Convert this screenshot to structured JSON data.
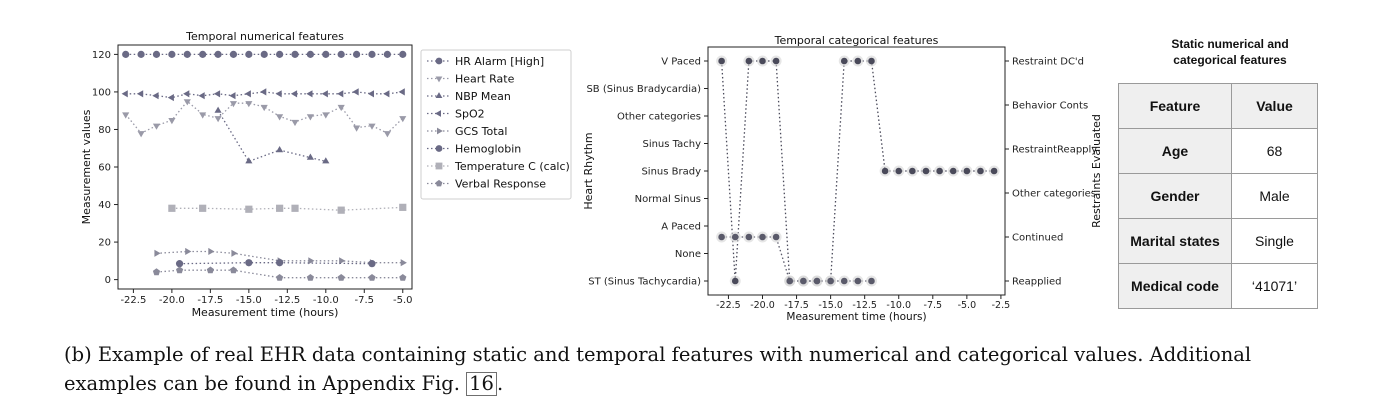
{
  "chart_data": [
    {
      "type": "line",
      "title": "Temporal numerical features",
      "xlabel": "Measurement time (hours)",
      "ylabel": "Measurement values",
      "xlim": [
        -23.5,
        -4.4
      ],
      "ylim": [
        -5,
        125
      ],
      "xticks": [
        -22.5,
        -20.0,
        -17.5,
        -15.0,
        -12.5,
        -10.0,
        -7.5,
        -5.0
      ],
      "xtick_labels": [
        "-22.5",
        "-20.0",
        "-17.5",
        "-15.0",
        "-12.5",
        "-10.0",
        "-7.5",
        "-5.0"
      ],
      "yticks": [
        0,
        20,
        40,
        60,
        80,
        100,
        120
      ],
      "ytick_labels": [
        "0",
        "20",
        "40",
        "60",
        "80",
        "100",
        "120"
      ],
      "legend_position": "outside right",
      "series": [
        {
          "name": "HR Alarm [High]",
          "marker": "circle",
          "color": "#6a6a85",
          "x": [
            -23,
            -22,
            -21,
            -20,
            -19,
            -18,
            -17,
            -16,
            -15,
            -14,
            -13,
            -12,
            -11,
            -10,
            -9,
            -8,
            -7,
            -6,
            -5
          ],
          "y": [
            120,
            120,
            120,
            120,
            120,
            120,
            120,
            120,
            120,
            120,
            120,
            120,
            120,
            120,
            120,
            120,
            120,
            120,
            120
          ]
        },
        {
          "name": "Heart Rate",
          "marker": "triangle-down",
          "color": "#9a9aa8",
          "x": [
            -23,
            -22,
            -21,
            -20,
            -19,
            -18,
            -17,
            -16,
            -15,
            -14,
            -13,
            -12,
            -11,
            -10,
            -9,
            -8,
            -7,
            -6,
            -5
          ],
          "y": [
            88,
            78,
            82,
            85,
            95,
            88,
            86,
            94,
            94,
            92,
            87,
            84,
            87,
            88,
            92,
            81,
            82,
            78,
            86
          ]
        },
        {
          "name": "NBP Mean",
          "marker": "triangle-up",
          "color": "#6a6a85",
          "x": [
            -17,
            -15,
            -13,
            -11,
            -10
          ],
          "y": [
            90,
            63,
            69,
            65,
            63
          ]
        },
        {
          "name": "SpO2",
          "marker": "triangle-left",
          "color": "#6a6a85",
          "x": [
            -23,
            -22,
            -21,
            -20,
            -19,
            -18,
            -17,
            -16,
            -15,
            -14,
            -13,
            -12,
            -11,
            -10,
            -9,
            -8,
            -7,
            -6,
            -5
          ],
          "y": [
            99,
            99,
            98,
            97,
            99,
            98,
            99,
            98,
            99,
            100,
            99,
            99,
            99,
            99,
            99,
            100,
            99,
            99,
            100
          ]
        },
        {
          "name": "GCS Total",
          "marker": "triangle-right",
          "color": "#8a8a9a",
          "x": [
            -21,
            -19,
            -17.5,
            -16,
            -13,
            -11,
            -9,
            -7,
            -5
          ],
          "y": [
            14,
            15,
            15,
            14,
            10,
            10,
            10,
            9,
            9
          ]
        },
        {
          "name": "Hemoglobin",
          "marker": "circle",
          "color": "#6a6a85",
          "x": [
            -19.5,
            -15,
            -13,
            -7
          ],
          "y": [
            8.5,
            9,
            9,
            8.5
          ]
        },
        {
          "name": "Temperature C (calc)",
          "marker": "square",
          "color": "#b0b0b8",
          "x": [
            -20,
            -18,
            -15,
            -13,
            -12,
            -9,
            -5
          ],
          "y": [
            38,
            38,
            37.5,
            38,
            38,
            37,
            38.5
          ]
        },
        {
          "name": "Verbal Response",
          "marker": "pentagon",
          "color": "#8a8a9a",
          "x": [
            -21,
            -19.5,
            -17.5,
            -16,
            -13,
            -11,
            -9,
            -7,
            -5
          ],
          "y": [
            4,
            5,
            5,
            5,
            1,
            1,
            1,
            1,
            1
          ]
        }
      ]
    },
    {
      "type": "line",
      "title": "Temporal categorical features",
      "xlabel": "Measurement time (hours)",
      "ylabel": "Heart Rhythm",
      "ylabel_right": "Restraints Evaluated",
      "xlim": [
        -24,
        -2.2
      ],
      "xticks": [
        -22.5,
        -20.0,
        -17.5,
        -15.0,
        -12.5,
        -10.0,
        -7.5,
        -5.0,
        -2.5
      ],
      "xtick_labels": [
        "-22.5",
        "-20.0",
        "-17.5",
        "-15.0",
        "-12.5",
        "-10.0",
        "-7.5",
        "-5.0",
        "-2.5"
      ],
      "y_categories_left": [
        "ST (Sinus Tachycardia)",
        "None",
        "A Paced",
        "Normal Sinus",
        "Sinus Brady",
        "Sinus Tachy",
        "Other categories",
        "SB (Sinus Bradycardia)",
        "V Paced"
      ],
      "y_categories_right": [
        "Reapplied",
        "Continued",
        "Other categories",
        "RestraintReapply",
        "Behavior Conts",
        "Restraint DC'd"
      ],
      "series": [
        {
          "name": "Heart Rhythm",
          "axis": "left",
          "color": "#4a4a5a",
          "x": [
            -23,
            -22,
            -21,
            -20,
            -19,
            -18,
            -17,
            -16,
            -15,
            -14,
            -13,
            -12,
            -11,
            -10,
            -9,
            -8,
            -7,
            -6,
            -5,
            -4,
            -3
          ],
          "y": [
            "V Paced",
            "ST (Sinus Tachycardia)",
            "V Paced",
            "V Paced",
            "V Paced",
            "ST (Sinus Tachycardia)",
            "ST (Sinus Tachycardia)",
            "ST (Sinus Tachycardia)",
            "ST (Sinus Tachycardia)",
            "V Paced",
            "V Paced",
            "V Paced",
            "Sinus Brady",
            "Sinus Brady",
            "Sinus Brady",
            "Sinus Brady",
            "Sinus Brady",
            "Sinus Brady",
            "Sinus Brady",
            "Sinus Brady",
            "Sinus Brady"
          ]
        },
        {
          "name": "Restraints Evaluated",
          "axis": "right",
          "color": "#5a5a6a",
          "x": [
            -23,
            -22,
            -21,
            -20,
            -19,
            -18,
            -17,
            -16,
            -15,
            -14,
            -13,
            -12
          ],
          "y": [
            "Continued",
            "Continued",
            "Continued",
            "Continued",
            "Continued",
            "Reapplied",
            "Reapplied",
            "Reapplied",
            "Reapplied",
            "Reapplied",
            "Reapplied",
            "Reapplied"
          ]
        }
      ]
    }
  ],
  "table": {
    "title_line1": "Static numerical and",
    "title_line2": "categorical features",
    "header": [
      "Feature",
      "Value"
    ],
    "rows": [
      [
        "Age",
        "68"
      ],
      [
        "Gender",
        "Male"
      ],
      [
        "Marital states",
        "Single"
      ],
      [
        "Medical code",
        "‘41071’"
      ]
    ]
  },
  "caption": {
    "line1": "(b) Example of real EHR data containing static and temporal features with numerical and categorical values. Additional",
    "line2_prefix": "examples can be found in Appendix Fig.",
    "fig_ref": "16",
    "line2_suffix": "."
  }
}
